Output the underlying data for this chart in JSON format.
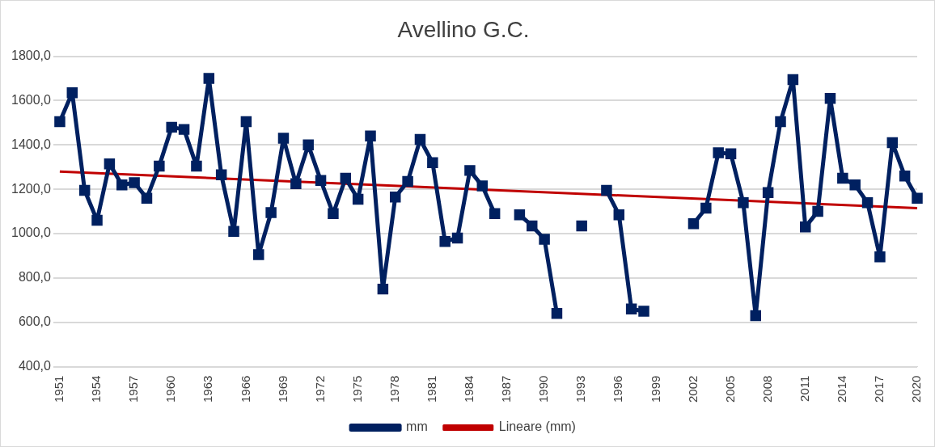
{
  "chart_data": {
    "type": "line",
    "title": "Avellino G.C.",
    "categories": [
      "1951",
      null,
      null,
      "1954",
      null,
      null,
      "1957",
      null,
      null,
      "1960",
      null,
      null,
      "1963",
      null,
      null,
      "1966",
      null,
      null,
      "1969",
      null,
      null,
      "1972",
      null,
      null,
      "1975",
      null,
      null,
      "1978",
      null,
      null,
      "1981",
      null,
      null,
      "1984",
      null,
      null,
      "1987",
      null,
      null,
      "1990",
      null,
      null,
      "1993",
      null,
      null,
      "1996",
      null,
      null,
      "1999",
      null,
      null,
      "2002",
      null,
      null,
      "2005",
      null,
      null,
      "2008",
      null,
      null,
      "2011",
      null,
      null,
      "2014",
      null,
      null,
      "2017",
      null,
      null,
      "2020"
    ],
    "series": [
      {
        "name": "mm",
        "color": "#002060",
        "marker": "square",
        "values": [
          1505,
          1635,
          1195,
          1060,
          1315,
          1220,
          1230,
          1160,
          1305,
          1480,
          1470,
          1305,
          1700,
          1265,
          1010,
          1505,
          905,
          1095,
          1430,
          1225,
          1400,
          1240,
          1090,
          1250,
          1155,
          1440,
          750,
          1165,
          1235,
          1425,
          1320,
          965,
          980,
          1285,
          1215,
          1090,
          null,
          1085,
          1035,
          975,
          640,
          null,
          1035,
          null,
          1195,
          1085,
          660,
          650,
          null,
          null,
          null,
          1045,
          1115,
          1365,
          1360,
          1140,
          630,
          1185,
          1505,
          1695,
          1030,
          1100,
          1610,
          1250,
          1220,
          1140,
          895,
          1410,
          1260,
          1160
        ]
      },
      {
        "name": "Lineare (mm)",
        "color": "#c00000",
        "marker": "none",
        "values": [
          1280,
          null,
          null,
          null,
          null,
          null,
          null,
          null,
          null,
          null,
          null,
          null,
          null,
          null,
          null,
          null,
          null,
          null,
          null,
          null,
          null,
          null,
          null,
          null,
          null,
          null,
          null,
          null,
          null,
          null,
          null,
          null,
          null,
          null,
          null,
          null,
          null,
          null,
          null,
          null,
          null,
          null,
          null,
          null,
          null,
          null,
          null,
          null,
          null,
          null,
          null,
          null,
          null,
          null,
          null,
          null,
          null,
          null,
          null,
          null,
          null,
          null,
          null,
          null,
          null,
          null,
          null,
          null,
          null,
          1115
        ]
      }
    ],
    "ylim": [
      400,
      1800
    ],
    "yticks": [
      {
        "value": 400,
        "label": "400,0"
      },
      {
        "value": 600,
        "label": "600,0"
      },
      {
        "value": 800,
        "label": "800,0"
      },
      {
        "value": 1000,
        "label": "1000,0"
      },
      {
        "value": 1200,
        "label": "1200,0"
      },
      {
        "value": 1400,
        "label": "1400,0"
      },
      {
        "value": 1600,
        "label": "1600,0"
      },
      {
        "value": 1800,
        "label": "1800,0"
      }
    ],
    "grid": "y",
    "legend": "bottom"
  }
}
